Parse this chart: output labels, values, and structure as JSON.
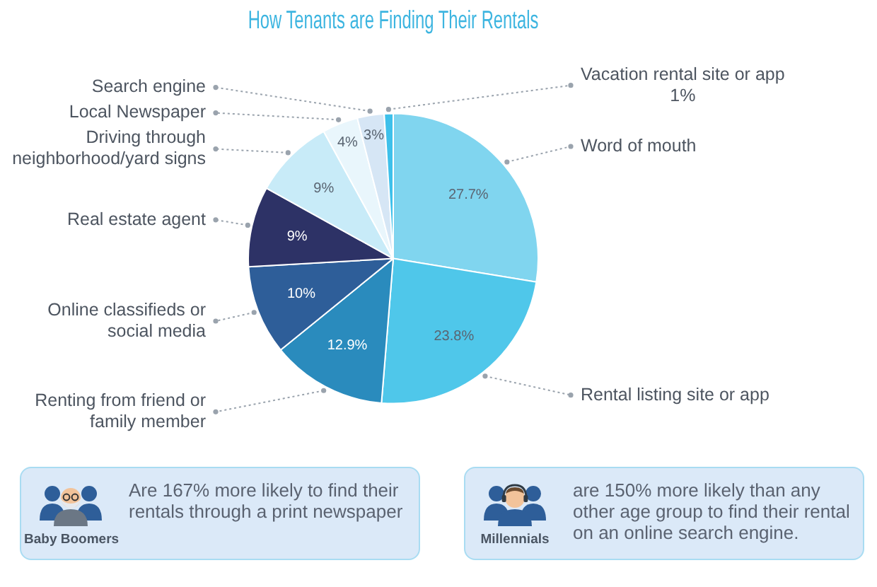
{
  "chart_data": {
    "type": "pie",
    "title": "How Tenants are Finding Their Rentals",
    "categories": [
      "Word of mouth",
      "Rental listing site or app",
      "Renting from friend or family member",
      "Online classifieds or social media",
      "Real estate agent",
      "Driving through neighborhood/yard signs",
      "Local Newspaper",
      "Search engine",
      "Vacation rental site or app"
    ],
    "values": [
      27.7,
      23.8,
      12.9,
      10,
      9,
      9,
      4,
      3,
      1
    ],
    "colors": [
      "#80d5ef",
      "#4fc7ea",
      "#2a8bbd",
      "#2e5e99",
      "#2d3266",
      "#c8ebf8",
      "#e9f6fc",
      "#d6e6f5",
      "#3ec0ea"
    ],
    "value_labels": [
      "27.7%",
      "23.8%",
      "12.9%",
      "10%",
      "9%",
      "9%",
      "4%",
      "3%",
      "1%"
    ],
    "legend": false,
    "annotations": [
      "Baby Boomers",
      "Are 167% more likely to find their rentals through a print newspaper",
      "Millennials",
      "are 150% more likely than any other age group to find their rental on an online search engine."
    ]
  }
}
